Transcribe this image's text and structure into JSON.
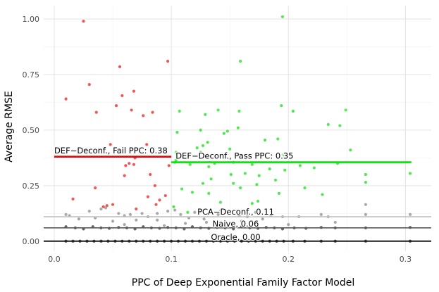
{
  "chart_data": {
    "type": "scatter",
    "title": "",
    "xlabel": "PPC of Deep Exponential Family Factor Model",
    "ylabel": "Average RMSE",
    "xlim": [
      -0.009,
      0.322
    ],
    "ylim": [
      -0.045,
      1.06
    ],
    "x_ticks": [
      0.0,
      0.1,
      0.2,
      0.3
    ],
    "x_tick_labels": [
      "0.0",
      "0.1",
      "0.2",
      "0.3"
    ],
    "y_ticks": [
      0.0,
      0.25,
      0.5,
      0.75,
      1.0
    ],
    "y_tick_labels": [
      "0.00",
      "0.25",
      "0.50",
      "0.75",
      "1.00"
    ],
    "grid": true,
    "colors": {
      "fail": "#e8221f",
      "pass": "#18e018",
      "oracle": "#000000",
      "naive": "#333333",
      "pca": "#8c8c8c",
      "grid_major": "#e3e3e3",
      "grid_minor": "#f2f2f2"
    },
    "reference_lines": [
      {
        "name": "def-fail",
        "label": "DEF−Deconf., Fail PPC: 0.38",
        "value": 0.38,
        "x_range": [
          0.0,
          0.1
        ],
        "color": "#d40d0d"
      },
      {
        "name": "def-pass",
        "label": "DEF−Deconf., Pass PPC: 0.35",
        "value": 0.355,
        "x_range": [
          0.1,
          0.305
        ],
        "color": "#0fe40f"
      },
      {
        "name": "pca",
        "label": "PCA−Deconf., 0.11",
        "value": 0.11,
        "x_range": null,
        "color": "#bfbfbf"
      },
      {
        "name": "naive",
        "label": "Naive, 0.06",
        "value": 0.06,
        "x_range": null,
        "color": "#5a5a5a"
      },
      {
        "name": "oracle",
        "label": "Oracle, 0.00",
        "value": 0.0,
        "x_range": null,
        "color": "#1a1a1a"
      }
    ],
    "series": [
      {
        "name": "DEF-Deconf. (Fail PPC)",
        "color": "#e8221f",
        "points": [
          [
            0.025,
            0.99
          ],
          [
            0.03,
            0.705
          ],
          [
            0.01,
            0.64
          ],
          [
            0.036,
            0.58
          ],
          [
            0.056,
            0.785
          ],
          [
            0.058,
            0.655
          ],
          [
            0.068,
            0.675
          ],
          [
            0.053,
            0.61
          ],
          [
            0.066,
            0.59
          ],
          [
            0.076,
            0.565
          ],
          [
            0.084,
            0.58
          ],
          [
            0.097,
            0.81
          ],
          [
            0.079,
            0.435
          ],
          [
            0.048,
            0.435
          ],
          [
            0.064,
            0.35
          ],
          [
            0.061,
            0.34
          ],
          [
            0.068,
            0.345
          ],
          [
            0.069,
            0.375
          ],
          [
            0.06,
            0.295
          ],
          [
            0.082,
            0.3
          ],
          [
            0.086,
            0.25
          ],
          [
            0.08,
            0.2
          ],
          [
            0.098,
            0.34
          ],
          [
            0.035,
            0.24
          ],
          [
            0.016,
            0.19
          ],
          [
            0.045,
            0.16
          ],
          [
            0.05,
            0.165
          ],
          [
            0.042,
            0.155
          ],
          [
            0.07,
            0.145
          ],
          [
            0.09,
            0.185
          ],
          [
            0.095,
            0.205
          ],
          [
            0.087,
            0.165
          ]
        ]
      },
      {
        "name": "DEF-Deconf. (Pass PPC)",
        "color": "#18e018",
        "points": [
          [
            0.195,
            1.01
          ],
          [
            0.159,
            0.81
          ],
          [
            0.194,
            0.61
          ],
          [
            0.204,
            0.585
          ],
          [
            0.249,
            0.59
          ],
          [
            0.158,
            0.585
          ],
          [
            0.14,
            0.59
          ],
          [
            0.107,
            0.585
          ],
          [
            0.129,
            0.57
          ],
          [
            0.244,
            0.52
          ],
          [
            0.234,
            0.525
          ],
          [
            0.157,
            0.51
          ],
          [
            0.148,
            0.495
          ],
          [
            0.145,
            0.485
          ],
          [
            0.125,
            0.5
          ],
          [
            0.105,
            0.49
          ],
          [
            0.131,
            0.445
          ],
          [
            0.127,
            0.43
          ],
          [
            0.122,
            0.42
          ],
          [
            0.125,
            0.4
          ],
          [
            0.15,
            0.415
          ],
          [
            0.104,
            0.4
          ],
          [
            0.104,
            0.365
          ],
          [
            0.18,
            0.455
          ],
          [
            0.191,
            0.46
          ],
          [
            0.253,
            0.41
          ],
          [
            0.103,
            0.355
          ],
          [
            0.116,
            0.345
          ],
          [
            0.132,
            0.335
          ],
          [
            0.137,
            0.35
          ],
          [
            0.153,
            0.355
          ],
          [
            0.169,
            0.345
          ],
          [
            0.184,
            0.325
          ],
          [
            0.197,
            0.32
          ],
          [
            0.21,
            0.34
          ],
          [
            0.222,
            0.33
          ],
          [
            0.242,
            0.35
          ],
          [
            0.196,
            0.39
          ],
          [
            0.151,
            0.3
          ],
          [
            0.163,
            0.305
          ],
          [
            0.175,
            0.295
          ],
          [
            0.189,
            0.275
          ],
          [
            0.134,
            0.28
          ],
          [
            0.127,
            0.26
          ],
          [
            0.132,
            0.215
          ],
          [
            0.153,
            0.26
          ],
          [
            0.159,
            0.24
          ],
          [
            0.173,
            0.255
          ],
          [
            0.214,
            0.24
          ],
          [
            0.118,
            0.22
          ],
          [
            0.109,
            0.235
          ],
          [
            0.266,
            0.3
          ],
          [
            0.304,
            0.305
          ],
          [
            0.266,
            0.265
          ],
          [
            0.192,
            0.215
          ],
          [
            0.229,
            0.21
          ],
          [
            0.102,
            0.155
          ],
          [
            0.114,
            0.13
          ],
          [
            0.142,
            0.175
          ],
          [
            0.169,
            0.17
          ],
          [
            0.174,
            0.18
          ]
        ]
      },
      {
        "name": "PCA-Deconf.",
        "color": "#8c8c8c",
        "points": [
          [
            0.01,
            0.12
          ],
          [
            0.013,
            0.115
          ],
          [
            0.03,
            0.135
          ],
          [
            0.04,
            0.145
          ],
          [
            0.044,
            0.15
          ],
          [
            0.055,
            0.125
          ],
          [
            0.06,
            0.115
          ],
          [
            0.065,
            0.12
          ],
          [
            0.075,
            0.125
          ],
          [
            0.08,
            0.11
          ],
          [
            0.088,
            0.125
          ],
          [
            0.097,
            0.135
          ],
          [
            0.103,
            0.14
          ],
          [
            0.108,
            0.12
          ],
          [
            0.115,
            0.105
          ],
          [
            0.12,
            0.13
          ],
          [
            0.128,
            0.1
          ],
          [
            0.14,
            0.12
          ],
          [
            0.15,
            0.125
          ],
          [
            0.158,
            0.115
          ],
          [
            0.165,
            0.11
          ],
          [
            0.178,
            0.1
          ],
          [
            0.185,
            0.115
          ],
          [
            0.195,
            0.11
          ],
          [
            0.209,
            0.11
          ],
          [
            0.228,
            0.12
          ],
          [
            0.234,
            0.11
          ],
          [
            0.266,
            0.165
          ],
          [
            0.266,
            0.12
          ],
          [
            0.304,
            0.12
          ],
          [
            0.088,
            0.095
          ],
          [
            0.021,
            0.1
          ],
          [
            0.035,
            0.105
          ],
          [
            0.142,
            0.135
          ],
          [
            0.172,
            0.13
          ],
          [
            0.05,
            0.09
          ],
          [
            0.07,
            0.095
          ],
          [
            0.094,
            0.07
          ],
          [
            0.112,
            0.08
          ],
          [
            0.16,
            0.09
          ],
          [
            0.2,
            0.075
          ],
          [
            0.24,
            0.085
          ],
          [
            0.13,
            0.085
          ],
          [
            0.06,
            0.075
          ]
        ]
      },
      {
        "name": "Naive",
        "color": "#333333",
        "points": [
          [
            0.01,
            0.065
          ],
          [
            0.018,
            0.06
          ],
          [
            0.025,
            0.055
          ],
          [
            0.033,
            0.065
          ],
          [
            0.04,
            0.06
          ],
          [
            0.047,
            0.058
          ],
          [
            0.055,
            0.062
          ],
          [
            0.062,
            0.06
          ],
          [
            0.069,
            0.055
          ],
          [
            0.076,
            0.065
          ],
          [
            0.083,
            0.06
          ],
          [
            0.09,
            0.058
          ],
          [
            0.097,
            0.062
          ],
          [
            0.104,
            0.06
          ],
          [
            0.111,
            0.055
          ],
          [
            0.118,
            0.065
          ],
          [
            0.125,
            0.06
          ],
          [
            0.132,
            0.058
          ],
          [
            0.139,
            0.062
          ],
          [
            0.146,
            0.06
          ],
          [
            0.153,
            0.055
          ],
          [
            0.16,
            0.065
          ],
          [
            0.167,
            0.06
          ],
          [
            0.174,
            0.058
          ],
          [
            0.181,
            0.062
          ],
          [
            0.188,
            0.06
          ],
          [
            0.195,
            0.055
          ],
          [
            0.205,
            0.06
          ],
          [
            0.215,
            0.058
          ],
          [
            0.228,
            0.062
          ],
          [
            0.24,
            0.06
          ],
          [
            0.266,
            0.06
          ],
          [
            0.304,
            0.062
          ]
        ]
      },
      {
        "name": "Oracle",
        "color": "#000000",
        "points": [
          [
            0.01,
            0.0
          ],
          [
            0.016,
            0.0
          ],
          [
            0.022,
            0.0
          ],
          [
            0.028,
            0.0
          ],
          [
            0.034,
            0.0
          ],
          [
            0.04,
            0.0
          ],
          [
            0.046,
            0.0
          ],
          [
            0.052,
            0.0
          ],
          [
            0.058,
            0.0
          ],
          [
            0.064,
            0.0
          ],
          [
            0.07,
            0.0
          ],
          [
            0.076,
            0.0
          ],
          [
            0.082,
            0.0
          ],
          [
            0.088,
            0.0
          ],
          [
            0.094,
            0.0
          ],
          [
            0.1,
            0.0
          ],
          [
            0.106,
            0.0
          ],
          [
            0.112,
            0.0
          ],
          [
            0.118,
            0.0
          ],
          [
            0.124,
            0.0
          ],
          [
            0.13,
            0.0
          ],
          [
            0.136,
            0.0
          ],
          [
            0.142,
            0.0
          ],
          [
            0.148,
            0.0
          ],
          [
            0.154,
            0.0
          ],
          [
            0.16,
            0.0
          ],
          [
            0.166,
            0.0
          ],
          [
            0.172,
            0.0
          ],
          [
            0.178,
            0.0
          ],
          [
            0.184,
            0.0
          ],
          [
            0.19,
            0.0
          ],
          [
            0.196,
            0.0
          ],
          [
            0.204,
            0.0
          ],
          [
            0.214,
            0.0
          ],
          [
            0.228,
            0.0
          ],
          [
            0.24,
            0.0
          ],
          [
            0.266,
            0.0
          ],
          [
            0.304,
            0.0
          ]
        ]
      }
    ]
  }
}
